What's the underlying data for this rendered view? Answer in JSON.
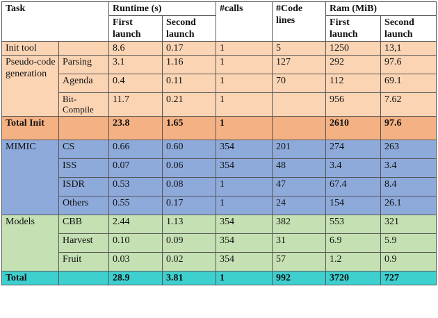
{
  "header": {
    "task": "Task",
    "runtime": "Runtime (s)",
    "calls": "#calls",
    "code_lines": "#Code lines",
    "ram": "Ram (MiB)",
    "first_launch": "First launch",
    "second_launch": "Second launch"
  },
  "groups": {
    "init_tool": "Init tool",
    "pseudo": "Pseudo-code generation",
    "total_init": "Total Init",
    "mimic": "MIMIC",
    "models": "Models",
    "total": "Total"
  },
  "rows": [
    {
      "sub": "",
      "rt1": "8.6",
      "rt2": "0.17",
      "calls": "1",
      "lines": "5",
      "ram1": "1250",
      "ram2": "13,1"
    },
    {
      "sub": "Parsing",
      "rt1": "3.1",
      "rt2": "1.16",
      "calls": "1",
      "lines": "127",
      "ram1": "292",
      "ram2": "97.6"
    },
    {
      "sub": "Agenda",
      "rt1": "0.4",
      "rt2": "0.11",
      "calls": "1",
      "lines": "70",
      "ram1": "112",
      "ram2": "69.1"
    },
    {
      "sub": "Bit-Compile",
      "rt1": "11.7",
      "rt2": "0.21",
      "calls": "1",
      "lines": "",
      "ram1": "956",
      "ram2": "7.62"
    },
    {
      "sub": "",
      "rt1": "23.8",
      "rt2": "1.65",
      "calls": "1",
      "lines": "",
      "ram1": "2610",
      "ram2": "97.6"
    },
    {
      "sub": "CS",
      "rt1": "0.66",
      "rt2": "0.60",
      "calls": "354",
      "lines": "201",
      "ram1": "274",
      "ram2": "263"
    },
    {
      "sub": "ISS",
      "rt1": "0.07",
      "rt2": "0.06",
      "calls": "354",
      "lines": "48",
      "ram1": "3.4",
      "ram2": "3.4"
    },
    {
      "sub": "ISDR",
      "rt1": "0.53",
      "rt2": "0.08",
      "calls": "1",
      "lines": "47",
      "ram1": "67.4",
      "ram2": "8.4"
    },
    {
      "sub": "Others",
      "rt1": "0.55",
      "rt2": "0.17",
      "calls": "1",
      "lines": "24",
      "ram1": "154",
      "ram2": "26.1"
    },
    {
      "sub": "CBB",
      "rt1": "2.44",
      "rt2": "1.13",
      "calls": "354",
      "lines": "382",
      "ram1": "553",
      "ram2": "321"
    },
    {
      "sub": "Harvest",
      "rt1": "0.10",
      "rt2": "0.09",
      "calls": "354",
      "lines": "31",
      "ram1": "6.9",
      "ram2": "5.9"
    },
    {
      "sub": "Fruit",
      "rt1": "0.03",
      "rt2": "0.02",
      "calls": "354",
      "lines": "57",
      "ram1": "1.2",
      "ram2": "0.9"
    },
    {
      "sub": "",
      "rt1": "28.9",
      "rt2": "3.81",
      "calls": "1",
      "lines": "992",
      "ram1": "3720",
      "ram2": "727"
    }
  ]
}
